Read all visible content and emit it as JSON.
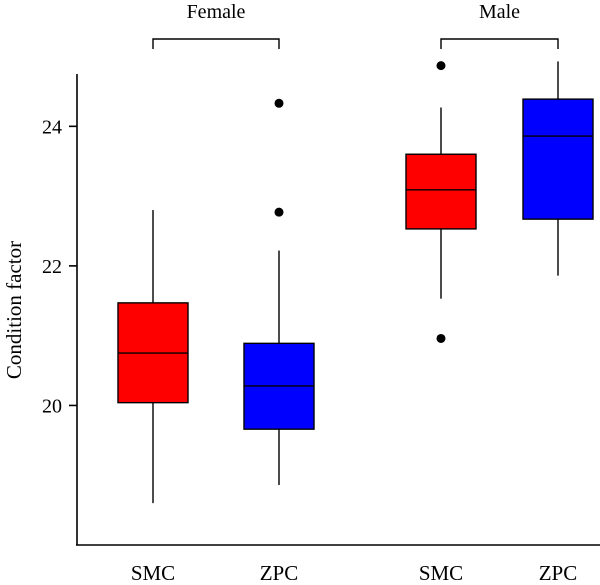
{
  "chart_data": {
    "type": "boxplot",
    "ylabel": "Condition factor",
    "xlabel": "",
    "ylim": [
      18.0,
      24.75
    ],
    "yticks": [
      20,
      22,
      24
    ],
    "grid": false,
    "groups": [
      {
        "label": "Female",
        "boxes": [
          {
            "category": "SMC",
            "color": "#ff0000",
            "whisker_low": 18.6,
            "q1": 20.04,
            "median": 20.75,
            "q3": 21.47,
            "whisker_high": 22.8,
            "outliers": []
          },
          {
            "category": "ZPC",
            "color": "#0000ff",
            "whisker_low": 18.86,
            "q1": 19.66,
            "median": 20.28,
            "q3": 20.89,
            "whisker_high": 22.22,
            "outliers": [
              22.77,
              24.33
            ]
          }
        ]
      },
      {
        "label": "Male",
        "boxes": [
          {
            "category": "SMC",
            "color": "#ff0000",
            "whisker_low": 21.53,
            "q1": 22.53,
            "median": 23.09,
            "q3": 23.6,
            "whisker_high": 24.27,
            "outliers": [
              20.96,
              24.87
            ]
          },
          {
            "category": "ZPC",
            "color": "#0000ff",
            "whisker_low": 21.86,
            "q1": 22.67,
            "median": 23.86,
            "q3": 24.39,
            "whisker_high": 24.93,
            "outliers": []
          }
        ]
      }
    ]
  }
}
